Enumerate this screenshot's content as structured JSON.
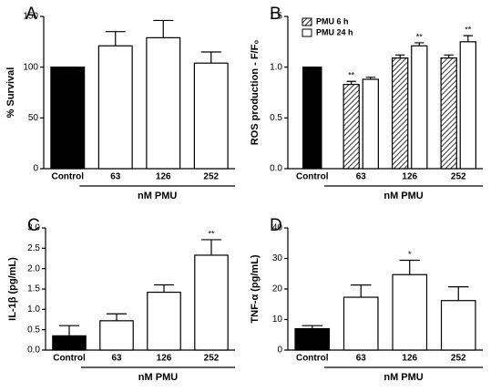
{
  "chart_data": [
    {
      "type": "bar",
      "panel": "A",
      "ylabel": "% Survival",
      "xlabel": "nM PMU",
      "categories": [
        "Control",
        "63",
        "126",
        "252"
      ],
      "values": [
        100,
        121,
        129,
        104
      ],
      "errors": [
        0,
        14,
        17,
        11
      ],
      "bar_colors": [
        "#000000",
        "#ffffff",
        "#ffffff",
        "#ffffff"
      ],
      "ylim": [
        0,
        150
      ],
      "yticks": [
        0,
        50,
        100,
        150
      ],
      "annotations": []
    },
    {
      "type": "bar",
      "panel": "B",
      "ylabel": "ROS production - F/F₀",
      "xlabel": "nM PMU",
      "categories": [
        "Control",
        "63",
        "126",
        "252"
      ],
      "values": [
        1.0,
        null,
        null,
        null
      ],
      "errors": [
        0,
        null,
        null,
        null
      ],
      "bar_colors": [
        "#000000",
        "#ffffff",
        "#ffffff",
        "#ffffff"
      ],
      "series": [
        {
          "name": "PMU 6 h",
          "color": "#ffffff",
          "hatch": true,
          "values": [
            null,
            0.83,
            1.09,
            1.09
          ],
          "errors": [
            null,
            0.03,
            0.03,
            0.03
          ]
        },
        {
          "name": "PMU 24 h",
          "color": "#ffffff",
          "hatch": false,
          "values": [
            null,
            0.88,
            1.21,
            1.25
          ],
          "errors": [
            null,
            0.02,
            0.03,
            0.06
          ]
        }
      ],
      "legend": "upper left",
      "ylim": [
        0,
        1.5
      ],
      "yticks": [
        {
          "value": 0,
          "label": "0.0"
        },
        0.5,
        {
          "value": 1,
          "label": "1.0"
        },
        1.5
      ],
      "annotations": [
        {
          "text": "**",
          "index": 1,
          "series": 0
        },
        {
          "text": "**",
          "index": 2,
          "series": 1
        },
        {
          "text": "**",
          "index": 3,
          "series": 1
        }
      ]
    },
    {
      "type": "bar",
      "panel": "C",
      "ylabel": "IL-1β (pg/mL)",
      "xlabel": "nM PMU",
      "categories": [
        "Control",
        "63",
        "126",
        "252"
      ],
      "values": [
        0.35,
        0.72,
        1.42,
        2.33
      ],
      "errors": [
        0.25,
        0.17,
        0.18,
        0.38
      ],
      "bar_colors": [
        "#000000",
        "#ffffff",
        "#ffffff",
        "#ffffff"
      ],
      "ylim": [
        0,
        3
      ],
      "yticks": [
        {
          "value": 0,
          "label": "0.0"
        },
        0.5,
        {
          "value": 1,
          "label": "1.0"
        },
        1.5,
        {
          "value": 2,
          "label": "2.0"
        },
        2.5,
        {
          "value": 3,
          "label": "3.0"
        }
      ],
      "annotations": [
        {
          "text": "**",
          "index": 3
        }
      ]
    },
    {
      "type": "bar",
      "panel": "D",
      "ylabel": "TNF-α (pg/mL)",
      "xlabel": "nM PMU",
      "categories": [
        "Control",
        "63",
        "126",
        "252"
      ],
      "values": [
        7,
        17.3,
        24.7,
        16.2
      ],
      "errors": [
        1,
        4,
        4.7,
        4.5
      ],
      "bar_colors": [
        "#000000",
        "#ffffff",
        "#ffffff",
        "#ffffff"
      ],
      "ylim": [
        0,
        40
      ],
      "yticks": [
        0,
        10,
        20,
        30,
        40
      ],
      "annotations": [
        {
          "text": "*",
          "index": 2
        }
      ]
    }
  ]
}
